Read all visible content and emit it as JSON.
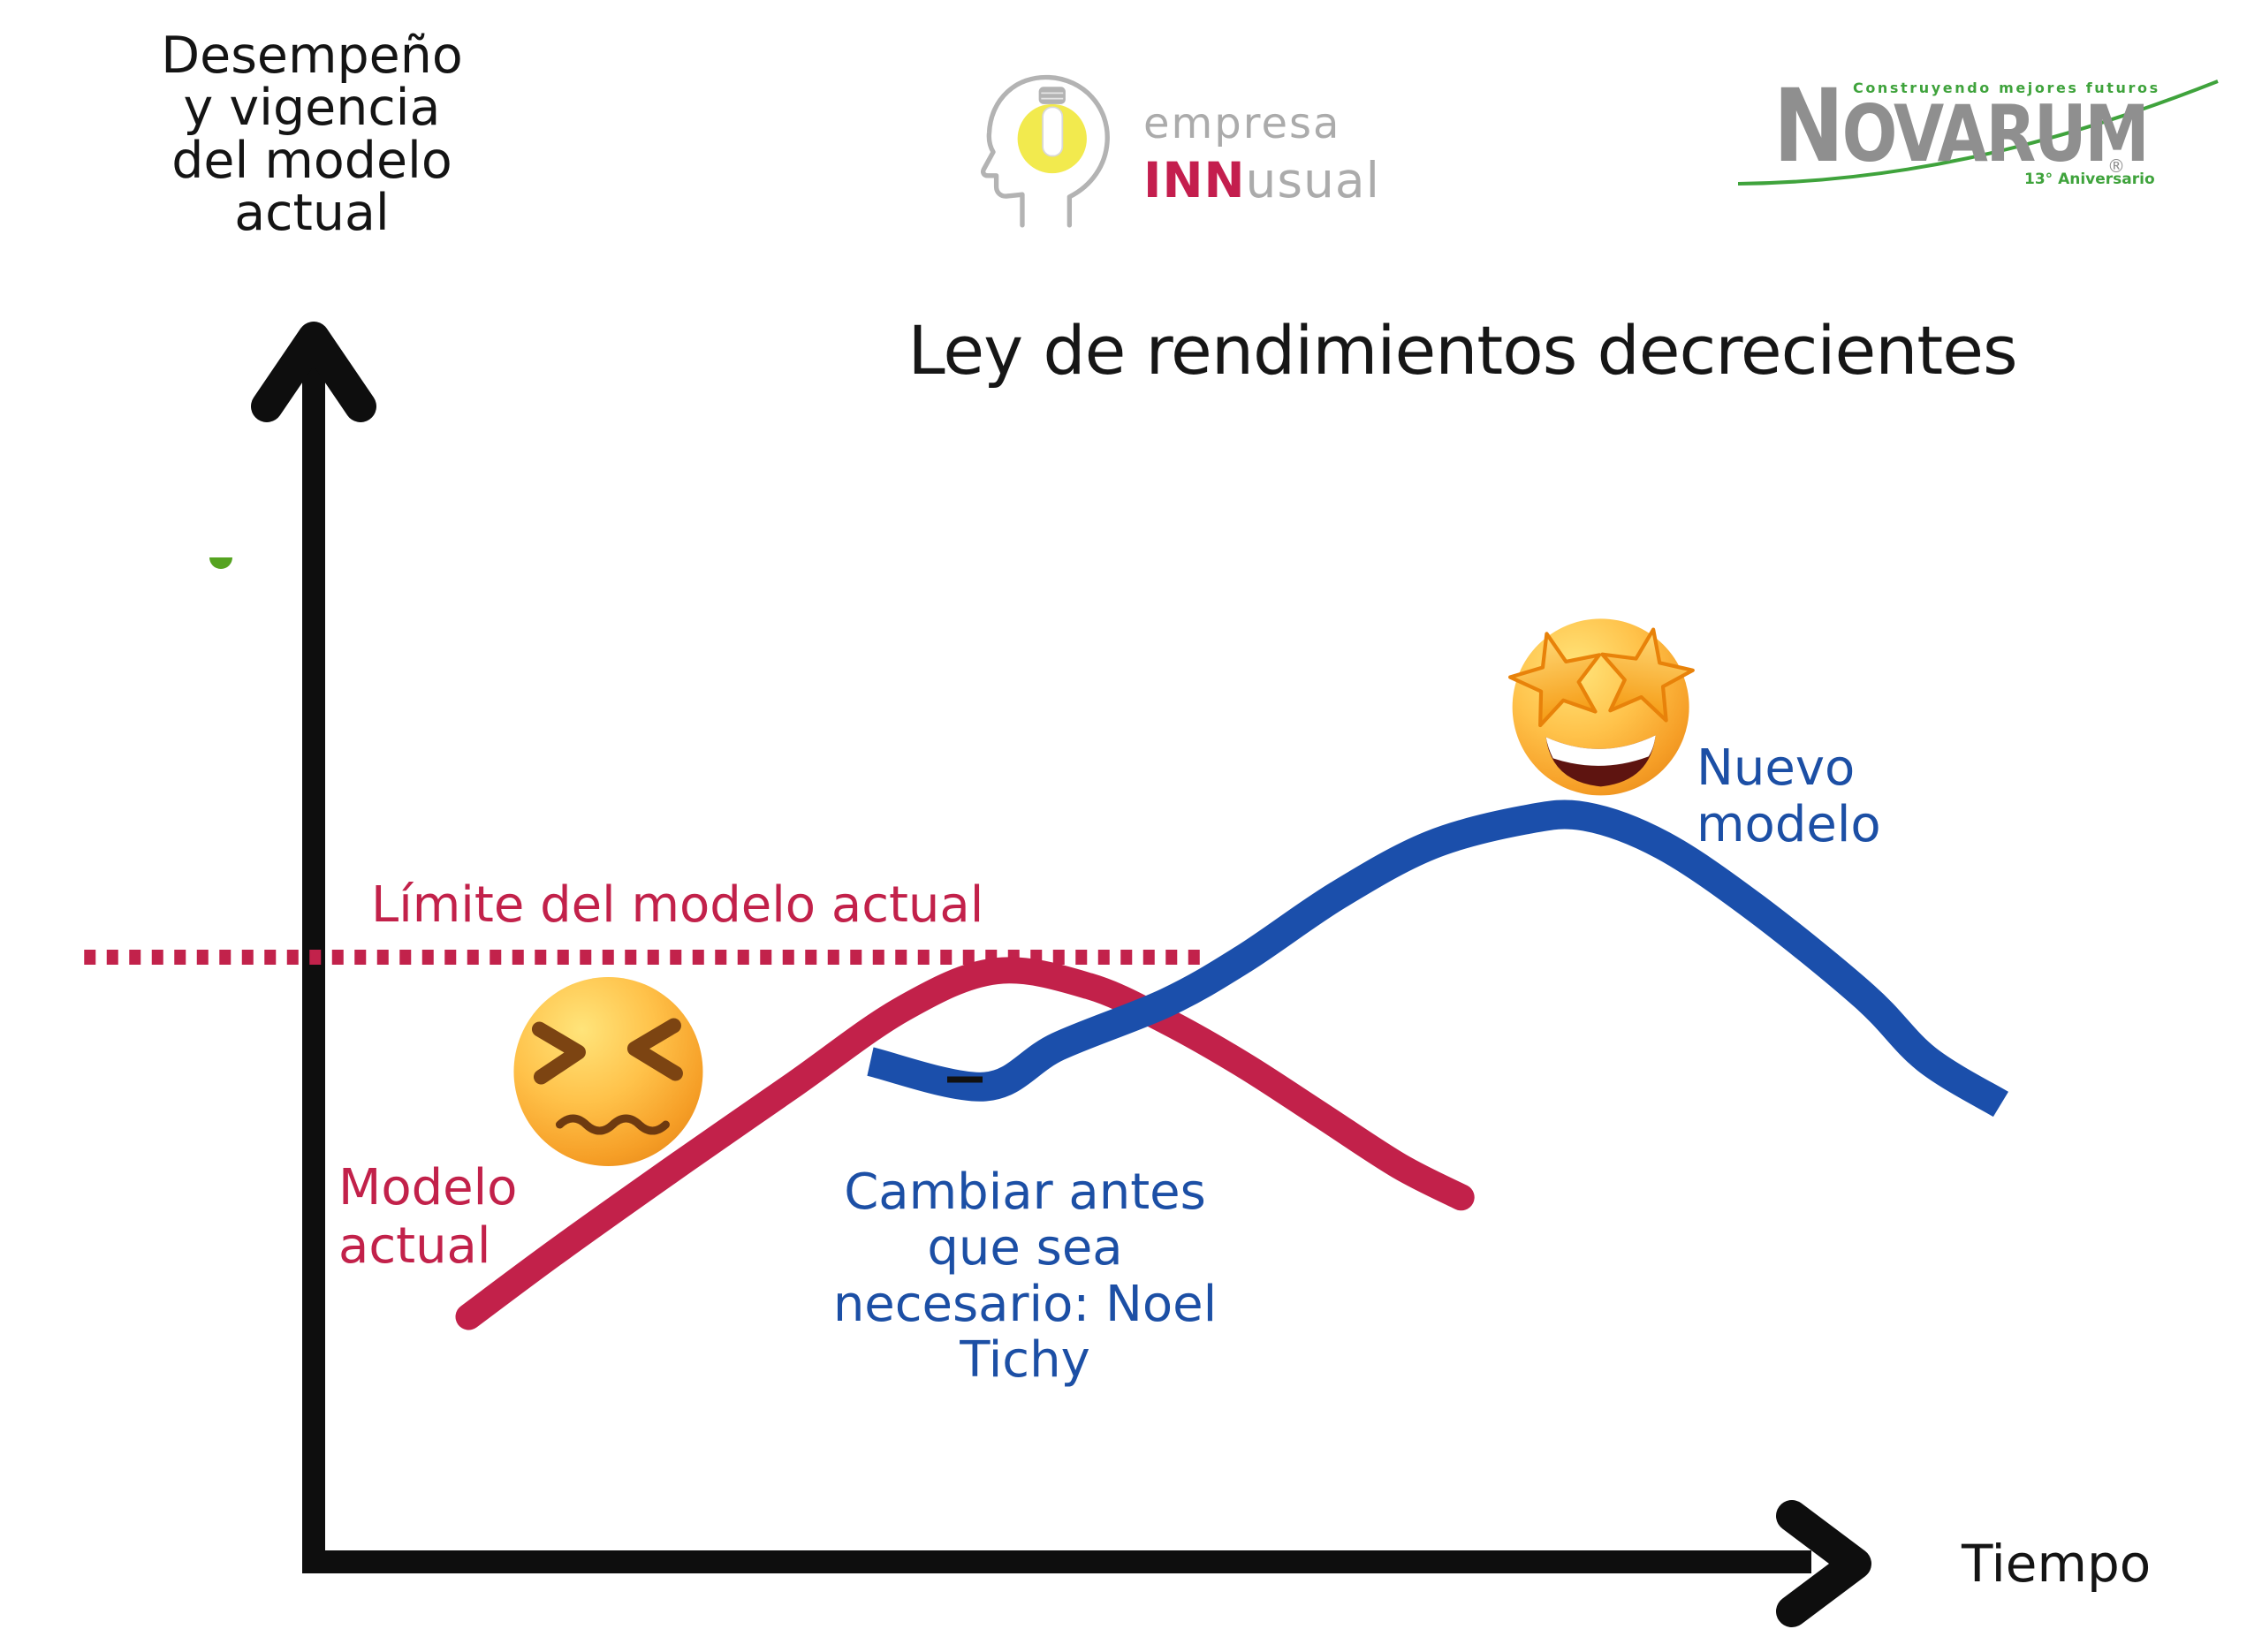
{
  "labels": {
    "title": "Ley de rendimientos decrecientes",
    "y_axis_lines": [
      "Desempeño",
      "y vigencia",
      "del modelo",
      "actual"
    ],
    "x_axis": "Tiempo",
    "limit": "Límite del modelo actual",
    "current_model_lines": [
      "Modelo",
      "actual"
    ],
    "quote_lines": [
      "Cambiar antes",
      "que sea",
      "necesario: Noel",
      "Tichy"
    ],
    "new_model_lines": [
      "Nuevo",
      "modelo"
    ]
  },
  "logos": {
    "empresa_innusual": {
      "word1": "empresa",
      "inn": "INN",
      "usual": "usual"
    },
    "novarum": {
      "tagline": "Construyendo mejores futuros",
      "name": "Novarum",
      "registered_mark": "®",
      "anniversary": "13° Aniversario"
    }
  },
  "icons": {
    "empresa_head": "head-profile-with-lightbulb-icon",
    "confounded_emoji": "confounded-face-3d-emoji",
    "star_struck_emoji": "star-struck-face-3d-emoji",
    "green_mark": "green-semicircle",
    "y_axis_arrow": "up-arrow",
    "x_axis_arrow": "right-arrow"
  },
  "colors": {
    "crimson": "#C2214A",
    "blue": "#1B4FAB",
    "black": "#0E0E0E",
    "novarum_green": "#3FA33C",
    "green_mark": "#55A320",
    "logo_gray": "#ABABAB",
    "novarum_gray": "#8F8F8F",
    "bulb_yellow": "#F2EA4E",
    "emoji_orange": "#FBAE3B"
  },
  "chart_data": {
    "type": "line",
    "title": "Ley de rendimientos decrecientes",
    "xlabel": "Tiempo",
    "ylabel": "Desempeño y vigencia del modelo actual",
    "axes": {
      "x_range": [
        0,
        100
      ],
      "y_range": [
        0,
        100
      ],
      "ticks": "none",
      "grid": false,
      "conceptual": true
    },
    "legend": "none (labels placed next to curves)",
    "series": [
      {
        "name": "Modelo actual",
        "color": "#C2214A",
        "line_style": "solid",
        "x": [
          10,
          16,
          24,
          31,
          38,
          44,
          50,
          55,
          60,
          65,
          70,
          74
        ],
        "y": [
          19.5,
          25,
          32,
          38,
          44,
          47,
          45.8,
          43,
          39.5,
          35.5,
          31.5,
          29
        ]
      },
      {
        "name": "Nuevo modelo",
        "color": "#1B4FAB",
        "line_style": "solid",
        "x": [
          35.9,
          43.3,
          48,
          55,
          60,
          66,
          72,
          78,
          82,
          87,
          93,
          100,
          104,
          108.8
        ],
        "y": [
          39.8,
          37.8,
          41,
          44.5,
          48,
          53,
          57,
          59,
          59.3,
          57,
          52,
          45,
          40,
          36.4
        ]
      },
      {
        "name": "Límite del modelo actual",
        "color": "#C2224B",
        "line_style": "dotted",
        "kind": "horizontal-reference-line",
        "y": 48.1,
        "x_start": -14.8,
        "x_end": 57.5
      }
    ],
    "annotations": [
      {
        "id": "limit-label",
        "text": "Límite del modelo actual",
        "color": "#C2214A",
        "x": 18,
        "y": 52
      },
      {
        "id": "current-model-label",
        "text": "Modelo actual",
        "color": "#C2214A",
        "x": 8,
        "y": 24
      },
      {
        "id": "change-quote",
        "text": "Cambiar antes que sea necesario: Noel Tichy",
        "color": "#1C4FA5",
        "x": 46,
        "y": 22
      },
      {
        "id": "new-model-label",
        "text": "Nuevo modelo",
        "color": "#1C4FA5",
        "x": 91,
        "y": 63
      },
      {
        "id": "confounded-emoji",
        "emoji": "confounded-face",
        "x": 19,
        "y": 39
      },
      {
        "id": "star-struck-emoji",
        "emoji": "star-struck-face",
        "x": 83,
        "y": 68
      },
      {
        "id": "dash-mark",
        "kind": "small-black-dash-on-blue-curve",
        "x": 42,
        "y": 38.4
      }
    ]
  }
}
